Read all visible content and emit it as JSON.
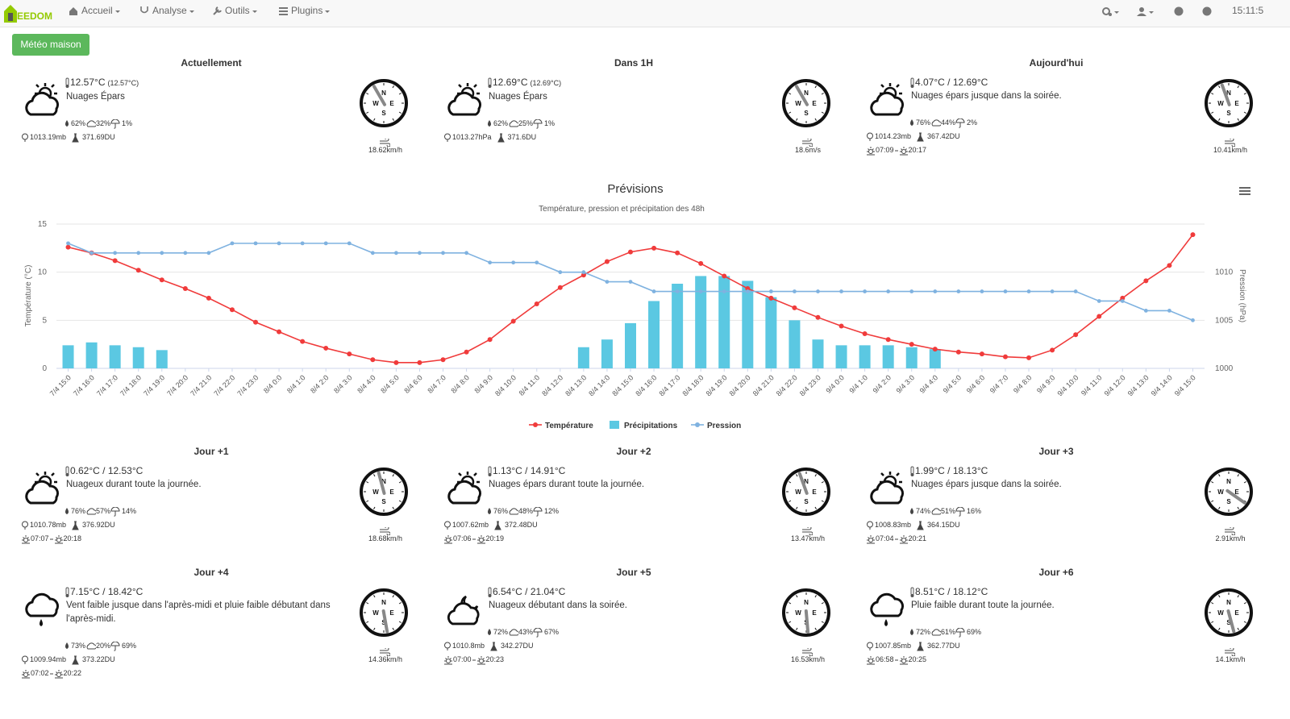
{
  "nav": {
    "logo": "EEDOM",
    "menu": [
      "Accueil",
      "Analyse",
      "Outils",
      "Plugins"
    ],
    "time": "15:11:5"
  },
  "button": "Météo maison",
  "compass_labels": [
    "N",
    "E",
    "S",
    "W"
  ],
  "cards": [
    {
      "title": "Actuellement",
      "icon": "partly-cloudy",
      "temp": "12.57°C",
      "temp_feel": "(12.57°C)",
      "description": "Nuages Épars",
      "humidity": "62%",
      "clouds": "32%",
      "rain": "1%",
      "pressure": "1013.19mb",
      "ozone": "371.69DU",
      "wind_speed": "18.62km/h",
      "wind_direction": 150
    },
    {
      "title": "Dans 1H",
      "icon": "partly-cloudy",
      "temp": "12.69°C",
      "temp_feel": "(12.69°C)",
      "description": "Nuages Épars",
      "humidity": "62%",
      "clouds": "25%",
      "rain": "1%",
      "pressure": "1013.27hPa",
      "ozone": "371.6DU",
      "wind_speed": "18.6m/s",
      "wind_direction": 150
    },
    {
      "title": "Aujourd'hui",
      "icon": "partly-cloudy",
      "temp": "4.07°C /  12.69°C",
      "description": "Nuages épars jusque dans la soirée.",
      "humidity": "76%",
      "clouds": "44%",
      "rain": "2%",
      "pressure": "1014.23mb",
      "ozone": "367.42DU",
      "sunrise": "07:09",
      "sunset": "20:17",
      "wind_speed": "10.41km/h",
      "wind_direction": 160
    },
    {
      "title": "Jour +1",
      "icon": "partly-cloudy",
      "temp": "0.62°C /  12.53°C",
      "description": "Nuageux durant toute la journée.",
      "humidity": "76%",
      "clouds": "57%",
      "rain": "14%",
      "pressure": "1010.78mb",
      "ozone": "376.92DU",
      "sunrise": "07:07",
      "sunset": "20:18",
      "wind_speed": "18.68km/h",
      "wind_direction": 165
    },
    {
      "title": "Jour +2",
      "icon": "partly-cloudy",
      "temp": "1.13°C /  14.91°C",
      "description": "Nuages épars durant toute la journée.",
      "humidity": "76%",
      "clouds": "48%",
      "rain": "12%",
      "pressure": "1007.62mb",
      "ozone": "372.48DU",
      "sunrise": "07:06",
      "sunset": "20:19",
      "wind_speed": "13.47km/h",
      "wind_direction": 160
    },
    {
      "title": "Jour +3",
      "icon": "partly-cloudy",
      "temp": "1.99°C /  18.13°C",
      "description": "Nuages épars jusque dans la soirée.",
      "humidity": "74%",
      "clouds": "51%",
      "rain": "16%",
      "pressure": "1008.83mb",
      "ozone": "364.15DU",
      "sunrise": "07:04",
      "sunset": "20:21",
      "wind_speed": "2.91km/h",
      "wind_direction": 305
    },
    {
      "title": "Jour +4",
      "icon": "rain",
      "temp": "7.15°C /  18.42°C",
      "description": "Vent faible jusque dans l'après-midi et pluie faible débutant dans l'après-midi.",
      "humidity": "73%",
      "clouds": "20%",
      "rain": "69%",
      "pressure": "1009.94mb",
      "ozone": "373.22DU",
      "sunrise": "07:02",
      "sunset": "20:22",
      "wind_speed": "14.36km/h",
      "wind_direction": 350
    },
    {
      "title": "Jour +5",
      "icon": "cloudy-night",
      "temp": "6.54°C /  21.04°C",
      "description": "Nuageux débutant dans la soirée.",
      "humidity": "72%",
      "clouds": "43%",
      "rain": "67%",
      "pressure": "1010.8mb",
      "ozone": "342.27DU",
      "sunrise": "07:00",
      "sunset": "20:23",
      "wind_speed": "16.53km/h",
      "wind_direction": 355
    },
    {
      "title": "Jour +6",
      "icon": "rain",
      "temp": "8.51°C /  18.12°C",
      "description": "Pluie faible durant toute la journée.",
      "humidity": "72%",
      "clouds": "61%",
      "rain": "69%",
      "pressure": "1007.85mb",
      "ozone": "362.77DU",
      "sunrise": "06:58",
      "sunset": "20:25",
      "wind_speed": "14.1km/h",
      "wind_direction": 345
    }
  ],
  "chart_data": {
    "type": "combo",
    "title": "Prévisions",
    "subtitle": "Température, pression et précipitation des 48h",
    "y_label": "Température (°C)",
    "y2_label": "Pression (hPa)",
    "categories": [
      "7/4 15:0",
      "7/4 16:0",
      "7/4 17:0",
      "7/4 18:0",
      "7/4 19:0",
      "7/4 20:0",
      "7/4 21:0",
      "7/4 22:0",
      "7/4 23:0",
      "8/4 0:0",
      "8/4 1:0",
      "8/4 2:0",
      "8/4 3:0",
      "8/4 4:0",
      "8/4 5:0",
      "8/4 6:0",
      "8/4 7:0",
      "8/4 8:0",
      "8/4 9:0",
      "8/4 10:0",
      "8/4 11:0",
      "8/4 12:0",
      "8/4 13:0",
      "8/4 14:0",
      "8/4 15:0",
      "8/4 16:0",
      "8/4 17:0",
      "8/4 18:0",
      "8/4 19:0",
      "8/4 20:0",
      "8/4 21:0",
      "8/4 22:0",
      "8/4 23:0",
      "9/4 0:0",
      "9/4 1:0",
      "9/4 2:0",
      "9/4 3:0",
      "9/4 4:0",
      "9/4 5:0",
      "9/4 6:0",
      "9/4 7:0",
      "9/4 8:0",
      "9/4 9:0",
      "9/4 10:0",
      "9/4 11:0",
      "9/4 12:0",
      "9/4 13:0",
      "9/4 14:0",
      "9/4 15:0"
    ],
    "series": [
      {
        "name": "Température",
        "type": "line",
        "axis": "y",
        "color": "#f03b3b",
        "values": [
          12.6,
          12.0,
          11.2,
          10.2,
          9.2,
          8.3,
          7.3,
          6.1,
          4.8,
          3.8,
          2.8,
          2.1,
          1.5,
          0.9,
          0.6,
          0.6,
          0.9,
          1.7,
          3.0,
          4.9,
          6.7,
          8.4,
          9.7,
          11.1,
          12.1,
          12.5,
          12.0,
          10.9,
          9.6,
          8.3,
          7.3,
          6.3,
          5.3,
          4.4,
          3.6,
          3.0,
          2.5,
          2.0,
          1.7,
          1.5,
          1.2,
          1.1,
          1.9,
          3.5,
          5.4,
          7.3,
          9.1,
          10.7,
          13.9
        ]
      },
      {
        "name": "Précipitations",
        "type": "bar",
        "axis": "y",
        "color": "#5bc8e2",
        "values": [
          2.4,
          2.7,
          2.4,
          2.2,
          1.9,
          0,
          0,
          0,
          0,
          0,
          0,
          0,
          0,
          0,
          0,
          0,
          0,
          0,
          0,
          0,
          0,
          0,
          2.2,
          3.0,
          4.7,
          7.0,
          8.8,
          9.6,
          9.6,
          9.1,
          7.4,
          5.0,
          3.0,
          2.4,
          2.4,
          2.4,
          2.2,
          2.0,
          0,
          0,
          0,
          0,
          0,
          0,
          0,
          0,
          0,
          0,
          0
        ]
      },
      {
        "name": "Pression",
        "type": "line",
        "axis": "y2",
        "color": "#7fb2e0",
        "values": [
          1013,
          1012,
          1012,
          1012,
          1012,
          1012,
          1012,
          1013,
          1013,
          1013,
          1013,
          1013,
          1013,
          1012,
          1012,
          1012,
          1012,
          1012,
          1011,
          1011,
          1011,
          1010,
          1010,
          1009,
          1009,
          1008,
          1008,
          1008,
          1008,
          1008,
          1008,
          1008,
          1008,
          1008,
          1008,
          1008,
          1008,
          1008,
          1008,
          1008,
          1008,
          1008,
          1008,
          1008,
          1007,
          1007,
          1006,
          1006,
          1005
        ]
      }
    ],
    "ylim": [
      0,
      15
    ],
    "yticks": [
      0,
      5,
      10,
      15
    ],
    "y2lim": [
      1000,
      1015
    ],
    "y2ticks": [
      1000,
      1005,
      1010
    ],
    "grid": true,
    "legend": "bottom"
  }
}
